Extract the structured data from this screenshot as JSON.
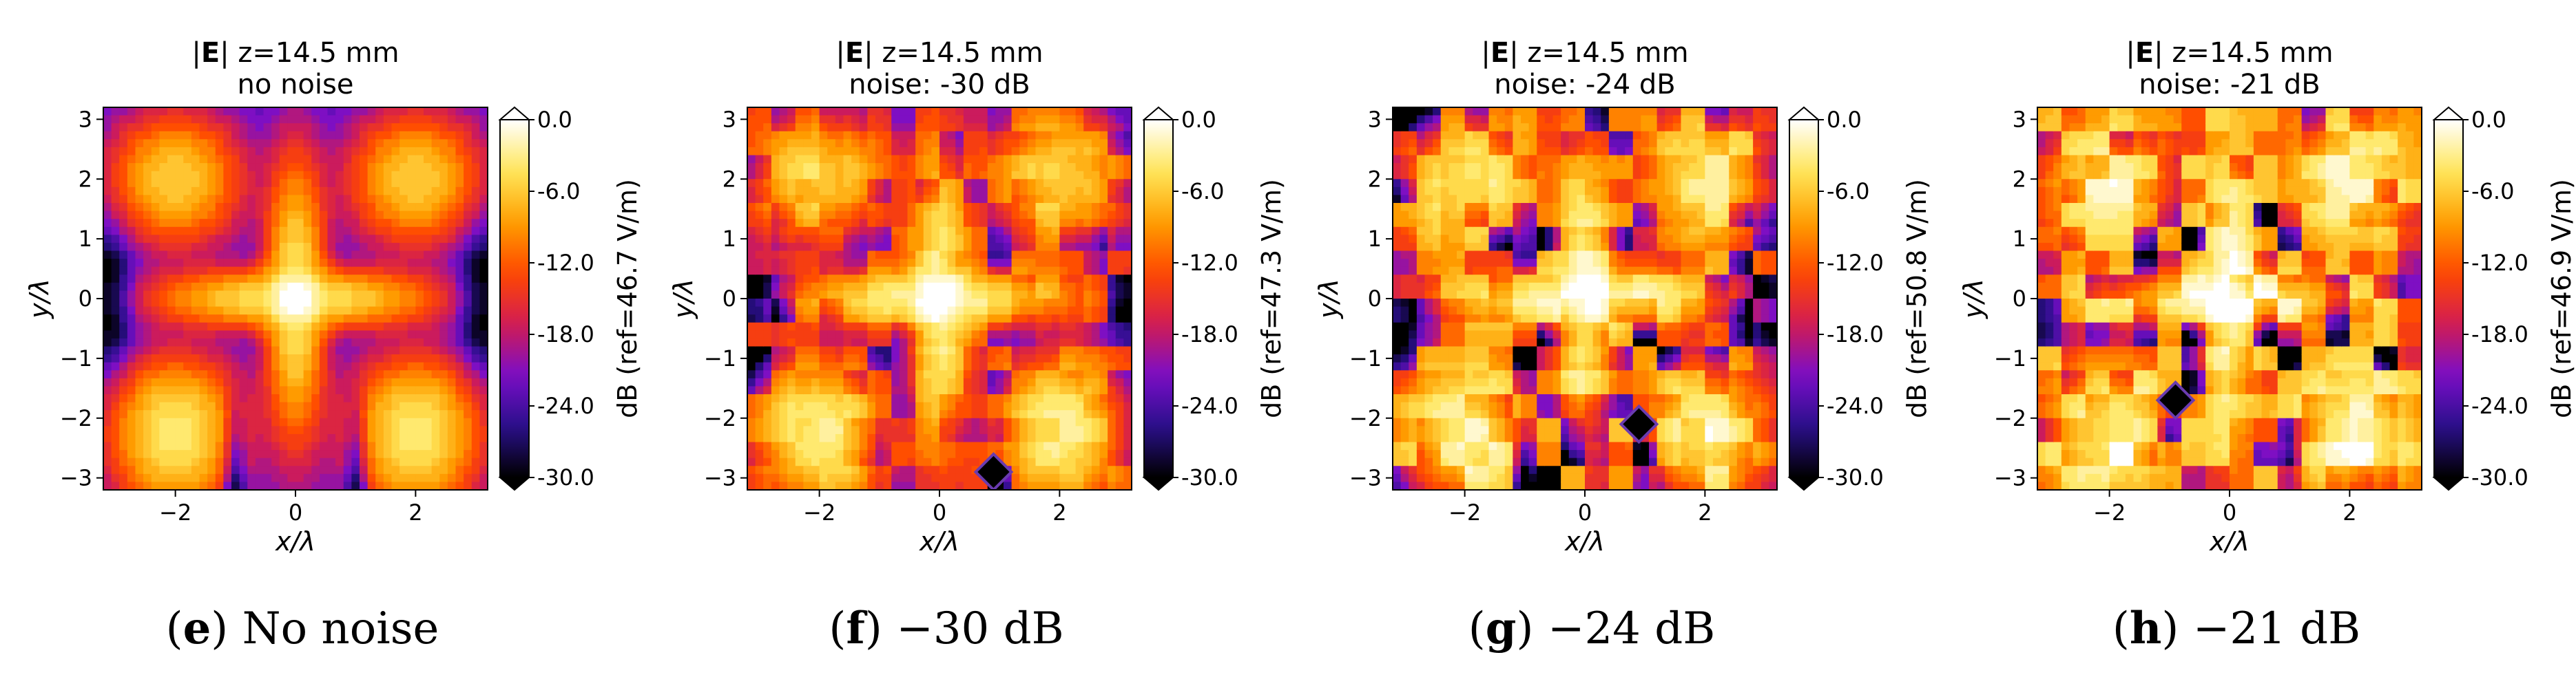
{
  "chart_data": [
    {
      "type": "heatmap",
      "panel": "e",
      "caption_bold": "e",
      "caption_text": "No noise",
      "title_prefix": "|",
      "title_bold": "E",
      "title_suffix": "| z=14.5 mm",
      "subtitle": "no noise",
      "xlabel": "x/λ",
      "ylabel": "y/λ",
      "colorbar_label": "dB (ref=46.7 V/m)",
      "xlim": [
        -3.2,
        3.2
      ],
      "ylim": [
        -3.2,
        3.2
      ],
      "xticks": [
        -2,
        0,
        2
      ],
      "yticks": [
        -3,
        -2,
        -1,
        0,
        1,
        2,
        3
      ],
      "clim": [
        -30,
        0
      ],
      "cbar_ticks": [
        "0.0",
        "-6.0",
        "-12.0",
        "-18.0",
        "-24.0",
        "-30.0"
      ],
      "noise_db": null,
      "marker": null
    },
    {
      "type": "heatmap",
      "panel": "f",
      "caption_bold": "f",
      "caption_text": "−30 dB",
      "title_prefix": "|",
      "title_bold": "E",
      "title_suffix": "| z=14.5 mm",
      "subtitle": "noise: -30 dB",
      "xlabel": "x/λ",
      "ylabel": "y/λ",
      "colorbar_label": "dB (ref=47.3 V/m)",
      "xlim": [
        -3.2,
        3.2
      ],
      "ylim": [
        -3.2,
        3.2
      ],
      "xticks": [
        -2,
        0,
        2
      ],
      "yticks": [
        -3,
        -2,
        -1,
        0,
        1,
        2,
        3
      ],
      "clim": [
        -30,
        0
      ],
      "cbar_ticks": [
        "0.0",
        "-6.0",
        "-12.0",
        "-18.0",
        "-24.0",
        "-30.0"
      ],
      "noise_db": -30,
      "marker": [
        0.9,
        -2.9
      ]
    },
    {
      "type": "heatmap",
      "panel": "g",
      "caption_bold": "g",
      "caption_text": "−24 dB",
      "title_prefix": "|",
      "title_bold": "E",
      "title_suffix": "| z=14.5 mm",
      "subtitle": "noise: -24 dB",
      "xlabel": "x/λ",
      "ylabel": "y/λ",
      "colorbar_label": "dB (ref=50.8 V/m)",
      "xlim": [
        -3.2,
        3.2
      ],
      "ylim": [
        -3.2,
        3.2
      ],
      "xticks": [
        -2,
        0,
        2
      ],
      "yticks": [
        -3,
        -2,
        -1,
        0,
        1,
        2,
        3
      ],
      "clim": [
        -30,
        0
      ],
      "cbar_ticks": [
        "0.0",
        "-6.0",
        "-12.0",
        "-18.0",
        "-24.0",
        "-30.0"
      ],
      "noise_db": -24,
      "marker": [
        0.9,
        -2.1
      ]
    },
    {
      "type": "heatmap",
      "panel": "h",
      "caption_bold": "h",
      "caption_text": "−21 dB",
      "title_prefix": "|",
      "title_bold": "E",
      "title_suffix": "| z=14.5 mm",
      "subtitle": "noise: -21 dB",
      "xlabel": "x/λ",
      "ylabel": "y/λ",
      "colorbar_label": "dB (ref=46.9 V/m)",
      "xlim": [
        -3.2,
        3.2
      ],
      "ylim": [
        -3.2,
        3.2
      ],
      "xticks": [
        -2,
        0,
        2
      ],
      "yticks": [
        -3,
        -2,
        -1,
        0,
        1,
        2,
        3
      ],
      "clim": [
        -30,
        0
      ],
      "cbar_ticks": [
        "0.0",
        "-6.0",
        "-12.0",
        "-18.0",
        "-24.0",
        "-30.0"
      ],
      "noise_db": -21,
      "marker": [
        -0.9,
        -1.7
      ]
    }
  ],
  "colors": {
    "colormap": [
      "#000000",
      "#2a0f8a",
      "#7a0ec8",
      "#d21c53",
      "#ff4700",
      "#ff9f00",
      "#ffe65a",
      "#ffffff"
    ],
    "marker_fill": "#000000",
    "marker_edge": "#6a3bb0"
  }
}
